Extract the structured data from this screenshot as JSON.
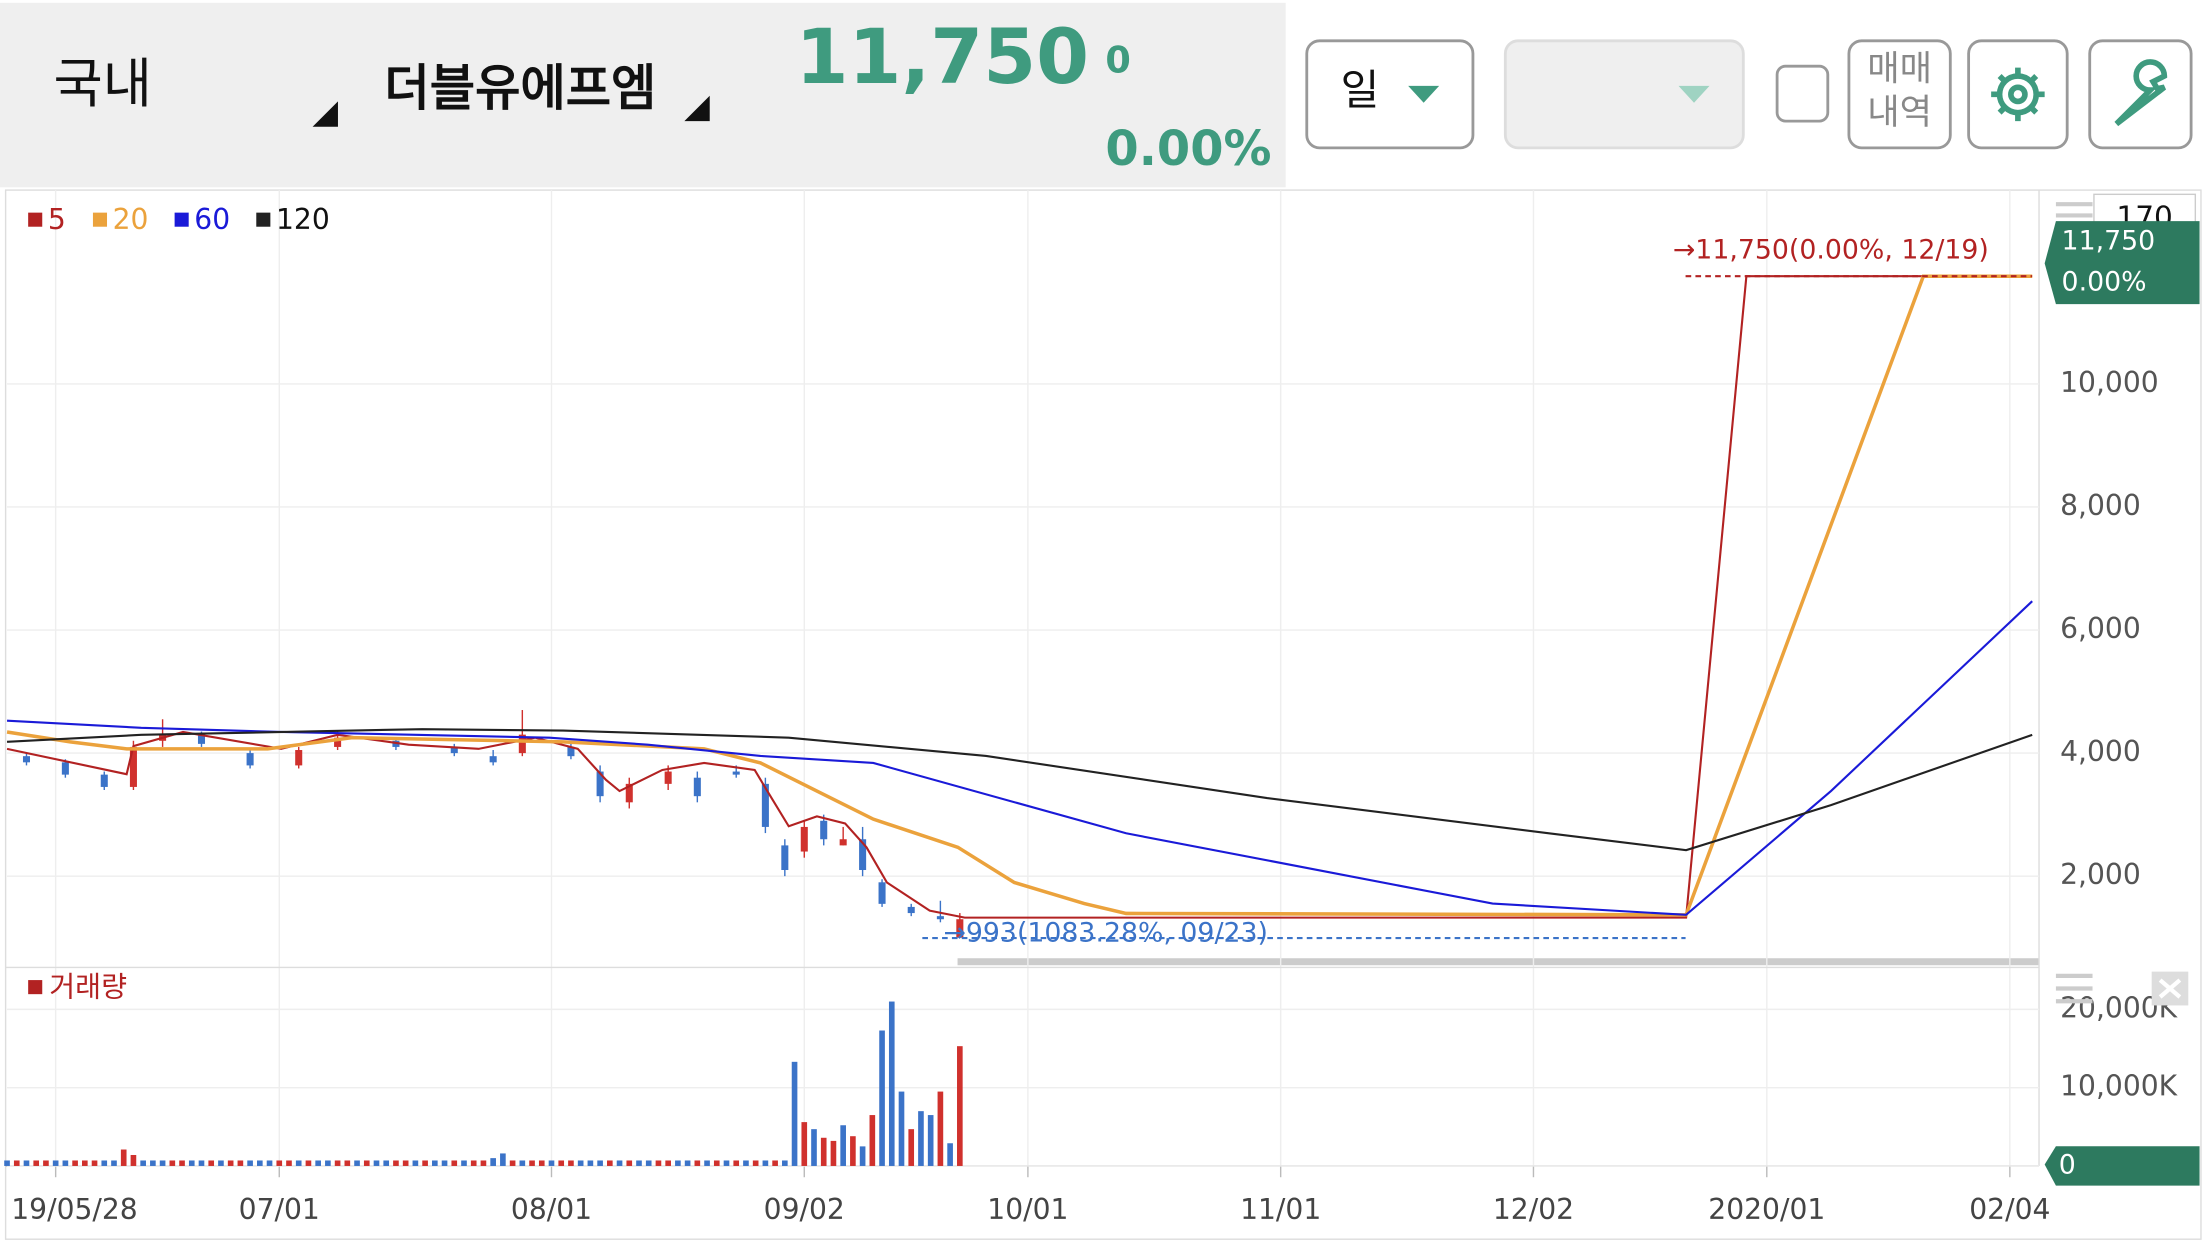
{
  "header": {
    "market": "국내",
    "stock": "더블유에프엠",
    "price": "11,750",
    "change": "0",
    "change_pct": "0.00%"
  },
  "toolbar": {
    "period": "일",
    "history": [
      "매매",
      "내역"
    ]
  },
  "chart_data": [
    {
      "type": "candlestick",
      "xlim": [
        0,
        209
      ],
      "ylim": [
        700,
        13150
      ],
      "xticks": [
        {
          "value": 5,
          "label": "19/05/28"
        },
        {
          "value": 28,
          "label": "07/01"
        },
        {
          "value": 56,
          "label": "08/01"
        },
        {
          "value": 82,
          "label": "09/02"
        },
        {
          "value": 105,
          "label": "10/01"
        },
        {
          "value": 131,
          "label": "11/01"
        },
        {
          "value": 157,
          "label": "12/02"
        },
        {
          "value": 181,
          "label": "2020/01"
        },
        {
          "value": 206,
          "label": "02/04"
        }
      ],
      "yticks": [
        {
          "value": 2000,
          "label": "2,000"
        },
        {
          "value": 4000,
          "label": "4,000"
        },
        {
          "value": 6000,
          "label": "6,000"
        },
        {
          "value": 8000,
          "label": "8,000"
        },
        {
          "value": 10000,
          "label": "10,000"
        }
      ],
      "grid": true,
      "up_color": "#d0312d",
      "down_color": "#3b73c8",
      "candles": {
        "x": [
          2,
          6,
          10,
          13,
          16,
          20,
          25,
          30,
          34,
          40,
          46,
          50,
          53,
          58,
          61,
          64,
          68,
          71,
          75,
          78,
          80,
          82,
          84,
          86,
          88,
          90,
          93,
          96,
          98
        ],
        "open": [
          3950,
          3850,
          3650,
          3450,
          4200,
          4300,
          4000,
          3800,
          4100,
          4200,
          4100,
          3950,
          4000,
          4100,
          3700,
          3200,
          3500,
          3600,
          3700,
          3500,
          2500,
          2400,
          2900,
          2500,
          2600,
          1900,
          1500,
          1350,
          1000
        ],
        "high": [
          4000,
          3900,
          3700,
          4200,
          4550,
          4350,
          4050,
          4100,
          4350,
          4250,
          4150,
          4050,
          4700,
          4200,
          3800,
          3600,
          3800,
          3700,
          3800,
          3600,
          2600,
          2900,
          3000,
          2800,
          2800,
          1950,
          1550,
          1600,
          1400
        ],
        "low": [
          3800,
          3600,
          3400,
          3400,
          4100,
          4100,
          3750,
          3750,
          4050,
          4050,
          3950,
          3800,
          3950,
          3900,
          3200,
          3100,
          3400,
          3200,
          3600,
          2700,
          2000,
          2300,
          2500,
          2500,
          2000,
          1500,
          1350,
          1250,
          993
        ],
        "close": [
          3850,
          3650,
          3450,
          4100,
          4300,
          4150,
          3800,
          4050,
          4250,
          4100,
          4000,
          3850,
          4300,
          3950,
          3300,
          3500,
          3700,
          3300,
          3650,
          2800,
          2100,
          2800,
          2600,
          2600,
          2100,
          1550,
          1400,
          1300,
          1300
        ]
      },
      "series": [
        {
          "name": "5",
          "color": "#b22222",
          "x": [
            0,
            12.3,
            13,
            18.1,
            28.2,
            34,
            41.3,
            48.5,
            54.3,
            58.7,
            61.6,
            63,
            67.4,
            71.7,
            76.9,
            78.2,
            80.4,
            83.3,
            86.2,
            88.4,
            90.5,
            94.9,
            98.5,
            172.7,
            178.9,
            208.3
          ],
          "values": [
            4069,
            3657,
            4114,
            4343,
            4069,
            4297,
            4137,
            4069,
            4251,
            4069,
            3566,
            3383,
            3726,
            3840,
            3726,
            3383,
            2811,
            2971,
            2857,
            2469,
            1897,
            1440,
            1326,
            1326,
            11750,
            11750
          ]
        },
        {
          "name": "20",
          "color": "#eba23c",
          "x": [
            0,
            6.5,
            12.3,
            26.8,
            35.5,
            57.2,
            71.7,
            77.5,
            83.3,
            89.1,
            97.8,
            103.6,
            110.8,
            115.1,
            172.7,
            197.1,
            208.3
          ],
          "values": [
            4343,
            4183,
            4069,
            4069,
            4251,
            4183,
            4069,
            3840,
            3383,
            2926,
            2469,
            1897,
            1554,
            1394,
            1371,
            11750,
            11750
          ]
        },
        {
          "name": "60",
          "color": "#1a1ad8",
          "x": [
            0,
            13.8,
            28.2,
            55.8,
            65.9,
            77.5,
            89.1,
            115.1,
            152.8,
            172.7,
            187.6,
            208.3
          ],
          "values": [
            4526,
            4411,
            4343,
            4251,
            4137,
            3954,
            3840,
            2697,
            1554,
            1371,
            3383,
            6469
          ]
        },
        {
          "name": "120",
          "color": "#222222",
          "x": [
            0,
            13.8,
            42.7,
            57.2,
            80.4,
            100.7,
            129.6,
            158.6,
            172.7,
            187.6,
            208.3
          ],
          "values": [
            4183,
            4297,
            4389,
            4366,
            4251,
            3954,
            3269,
            2697,
            2423,
            3154,
            4297
          ]
        }
      ],
      "annotations": [
        {
          "text": "→11,750(0.00%, 12/19)",
          "value": 11750,
          "color": "#b22222"
        },
        {
          "text": "→993(1083.28%, 09/23)",
          "value": 993,
          "color": "#3b73c8"
        }
      ],
      "price_tag": {
        "price": "11,750",
        "pct": "0.00%"
      },
      "corner_label": "170"
    },
    {
      "type": "bar",
      "xlim": [
        0,
        209
      ],
      "ylim": [
        0,
        25000
      ],
      "yticks": [
        0,
        {
          "value": 10000,
          "label": "10,000K"
        },
        {
          "value": 20000,
          "label": "20,000K"
        }
      ],
      "grid": true,
      "up_color": "#d0312d",
      "down_color": "#3b73c8",
      "current": "0",
      "series": [
        {
          "name": "거래량",
          "color": "#b22222",
          "x": [
            0,
            1,
            2,
            3,
            4,
            5,
            6,
            7,
            8,
            9,
            10,
            11,
            12,
            13,
            14,
            15,
            16,
            17,
            18,
            19,
            20,
            21,
            22,
            23,
            24,
            25,
            26,
            27,
            28,
            29,
            30,
            31,
            32,
            33,
            34,
            35,
            36,
            37,
            38,
            39,
            40,
            41,
            42,
            43,
            44,
            45,
            46,
            47,
            48,
            49,
            50,
            51,
            52,
            53,
            54,
            55,
            56,
            57,
            58,
            59,
            60,
            61,
            62,
            63,
            64,
            65,
            66,
            67,
            68,
            69,
            70,
            71,
            72,
            73,
            74,
            75,
            76,
            77,
            78,
            79,
            80,
            81,
            82,
            83,
            84,
            85,
            86,
            87,
            88,
            89,
            90,
            91,
            92,
            93,
            94,
            95,
            96,
            97,
            98
          ],
          "values": [
            700,
            700,
            700,
            700,
            700,
            700,
            700,
            700,
            700,
            700,
            700,
            700,
            2100,
            1400,
            700,
            700,
            700,
            700,
            700,
            700,
            700,
            700,
            700,
            700,
            700,
            700,
            700,
            700,
            700,
            700,
            700,
            700,
            700,
            700,
            700,
            700,
            700,
            700,
            700,
            700,
            700,
            700,
            700,
            700,
            700,
            700,
            700,
            700,
            700,
            700,
            1000,
            1600,
            700,
            700,
            700,
            700,
            700,
            700,
            700,
            700,
            700,
            700,
            700,
            700,
            700,
            700,
            700,
            700,
            700,
            700,
            700,
            700,
            700,
            700,
            700,
            700,
            700,
            700,
            700,
            700,
            700,
            13300,
            5600,
            4700,
            3600,
            3200,
            5200,
            3800,
            2500,
            6500,
            17300,
            21000,
            9500,
            4700,
            7000,
            6500,
            9500,
            2900,
            15300
          ],
          "up": [
            false,
            true,
            false,
            true,
            true,
            false,
            false,
            true,
            true,
            true,
            false,
            false,
            true,
            true,
            false,
            false,
            false,
            true,
            true,
            false,
            false,
            true,
            false,
            true,
            true,
            false,
            false,
            false,
            true,
            true,
            false,
            true,
            false,
            false,
            true,
            true,
            false,
            true,
            false,
            false,
            true,
            true,
            false,
            true,
            false,
            false,
            true,
            false,
            true,
            true,
            false,
            false,
            true,
            false,
            true,
            true,
            false,
            true,
            true,
            false,
            false,
            false,
            true,
            false,
            true,
            false,
            false,
            true,
            true,
            false,
            false,
            true,
            false,
            true,
            false,
            true,
            false,
            true,
            false,
            true,
            false,
            false,
            true,
            false,
            true,
            true,
            false,
            true,
            false,
            true,
            false,
            false,
            false,
            true,
            false,
            false,
            true,
            false,
            true
          ]
        }
      ]
    }
  ]
}
